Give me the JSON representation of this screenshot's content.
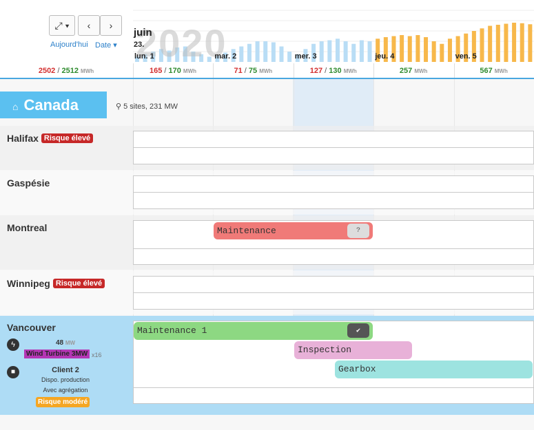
{
  "toolbar": {
    "today": "Aujourd'hui",
    "date": "Date"
  },
  "header": {
    "year": "2020",
    "month": "juin",
    "week": "23.",
    "unit": "MWh",
    "separator": "/",
    "total": {
      "actual": 2502,
      "forecast": 2512
    },
    "days": [
      {
        "label": "lun. 1",
        "actual": 165,
        "forecast": 170
      },
      {
        "label": "mar. 2",
        "actual": 71,
        "forecast": 75
      },
      {
        "label": "mer. 3",
        "actual": 127,
        "forecast": 130
      },
      {
        "label": "jeu. 4",
        "forecast": 257
      },
      {
        "label": "ven. 5",
        "forecast": 567
      }
    ],
    "sparkline": {
      "actual": [
        10,
        15,
        20,
        25,
        22,
        28,
        30,
        20,
        15,
        10,
        12,
        18,
        25,
        30,
        35,
        40,
        40,
        38,
        30,
        20,
        15,
        25,
        35,
        40,
        42,
        45,
        40,
        35,
        42,
        40
      ],
      "forecast": [
        45,
        48,
        50,
        52,
        50,
        52,
        48,
        40,
        35,
        45,
        50,
        55,
        60,
        65,
        70,
        72,
        74,
        76,
        75,
        73
      ]
    }
  },
  "region": {
    "name": "Canada",
    "info": "5 sites, 231 MW"
  },
  "sites": [
    {
      "name": "Halifax",
      "badge": "Risque élevé"
    },
    {
      "name": "Gaspésie"
    },
    {
      "name": "Montreal",
      "tasks": [
        "Maintenance"
      ]
    },
    {
      "name": "Winnipeg",
      "badge": "Risque élevé"
    },
    {
      "name": "Vancouver",
      "power": "48",
      "power_unit": "MW",
      "turbine": "Wind Turbine 3MW",
      "count": "x16",
      "client": "Client 2",
      "dispo": "Dispo. production",
      "aggregation": "Avec agrégation",
      "badge": "Risque modéré",
      "tasks": [
        "Maintenance 1",
        "Inspection",
        "Gearbox"
      ]
    }
  ]
}
